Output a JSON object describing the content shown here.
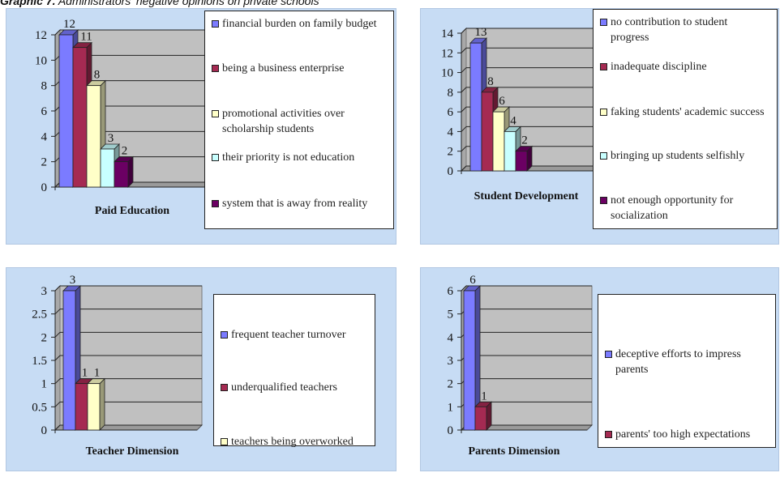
{
  "page": {
    "title_prefix": "Graphic 7.",
    "title_rest": " Administrators' negative opinions on private schools"
  },
  "colors": [
    "#7b7bff",
    "#a52a52",
    "#ffffc8",
    "#c8ffff",
    "#6b0063"
  ],
  "chart_data": [
    {
      "type": "bar",
      "categories": [
        "Paid Education"
      ],
      "xlabel": "Paid Education",
      "ylim": [
        0,
        12
      ],
      "yticks": [
        0,
        2,
        4,
        6,
        8,
        10,
        12
      ],
      "grid": true,
      "legend_position": "right",
      "series": [
        {
          "name": "financial burden on family budget",
          "values": [
            12
          ]
        },
        {
          "name": "being a business enterprise",
          "values": [
            11
          ]
        },
        {
          "name": "promotional activities over scholarship students",
          "values": [
            8
          ]
        },
        {
          "name": "their priority is not education",
          "values": [
            3
          ]
        },
        {
          "name": "system that is away from reality",
          "values": [
            2
          ]
        }
      ]
    },
    {
      "type": "bar",
      "categories": [
        "Student Development"
      ],
      "xlabel": "Student Development",
      "ylim": [
        0,
        14
      ],
      "yticks": [
        0,
        2,
        4,
        6,
        8,
        10,
        12,
        14
      ],
      "grid": true,
      "legend_position": "right",
      "series": [
        {
          "name": "no contribution to student progress",
          "values": [
            13
          ]
        },
        {
          "name": "inadequate discipline",
          "values": [
            8
          ]
        },
        {
          "name": "faking students' academic success",
          "values": [
            6
          ]
        },
        {
          "name": "bringing up students selfishly",
          "values": [
            4
          ]
        },
        {
          "name": "not enough opportunity for socialization",
          "values": [
            2
          ]
        }
      ]
    },
    {
      "type": "bar",
      "categories": [
        "Teacher Dimension"
      ],
      "xlabel": "Teacher Dimension",
      "ylim": [
        0,
        3
      ],
      "yticks": [
        0,
        0.5,
        1,
        1.5,
        2,
        2.5,
        3
      ],
      "grid": true,
      "legend_position": "right",
      "series": [
        {
          "name": "frequent teacher turnover",
          "values": [
            3
          ]
        },
        {
          "name": "underqualified teachers",
          "values": [
            1
          ]
        },
        {
          "name": "teachers being overworked",
          "values": [
            1
          ]
        }
      ]
    },
    {
      "type": "bar",
      "categories": [
        "Parents Dimension"
      ],
      "xlabel": "Parents Dimension",
      "ylim": [
        0,
        6
      ],
      "yticks": [
        0,
        1,
        2,
        3,
        4,
        5,
        6
      ],
      "grid": true,
      "legend_position": "right",
      "series": [
        {
          "name": "deceptive efforts to impress parents",
          "values": [
            6
          ]
        },
        {
          "name": "parents' too high expectations",
          "values": [
            1
          ]
        }
      ]
    }
  ]
}
